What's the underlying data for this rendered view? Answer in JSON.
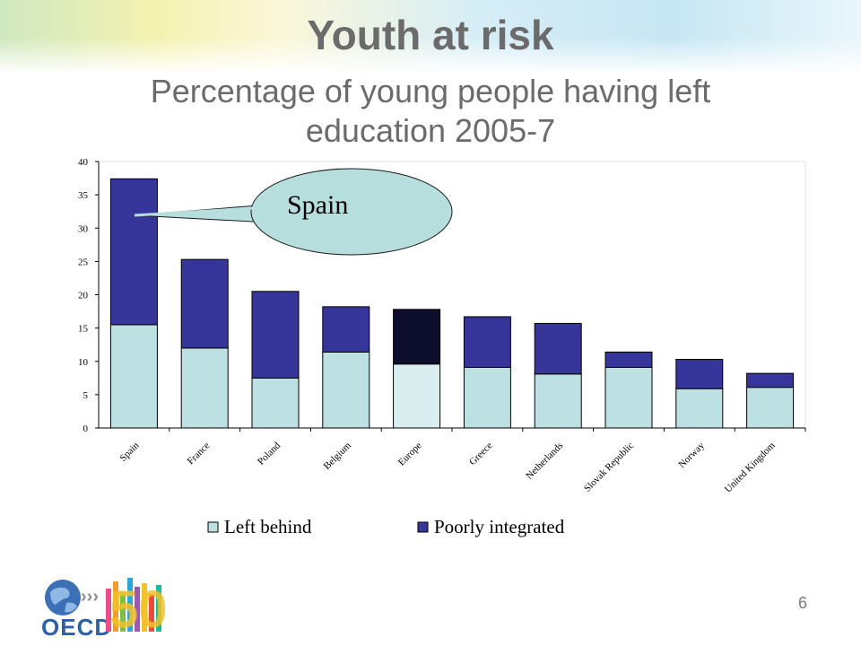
{
  "slide": {
    "title": "Youth at risk",
    "subtitle_line1": "Percentage of young people having left",
    "subtitle_line2": "education 2005-7",
    "page_number": "6",
    "callout_label": "Spain",
    "logo_text": "OECD",
    "logo_number": "50"
  },
  "colors": {
    "left_behind": "#bde0e3",
    "left_behind_highlight": "#daeef0",
    "poorly_integrated": "#36369a",
    "poorly_integrated_highlight": "#0d0d2e",
    "callout_fill": "#b5dedd"
  },
  "chart_data": {
    "type": "bar",
    "stacked": true,
    "categories": [
      "Spain",
      "France",
      "Poland",
      "Belgium",
      "Europe",
      "Greece",
      "Netherlands",
      "Slovak Republic",
      "Norway",
      "United Kingdom"
    ],
    "series": [
      {
        "name": "Left behind",
        "values": [
          15.5,
          12,
          7.5,
          11.4,
          9.6,
          9.1,
          8.1,
          9.1,
          5.9,
          6.1
        ]
      },
      {
        "name": "Poorly integrated",
        "values": [
          21.9,
          13.3,
          13,
          6.8,
          8.2,
          7.6,
          7.6,
          2.3,
          4.4,
          2.1
        ]
      }
    ],
    "ylim": [
      0,
      40
    ],
    "yticks": [
      "0",
      "5",
      "10",
      "15",
      "20",
      "25",
      "30",
      "35",
      "40"
    ],
    "highlight_category": "Europe",
    "legend_position": "bottom",
    "grid": false
  }
}
